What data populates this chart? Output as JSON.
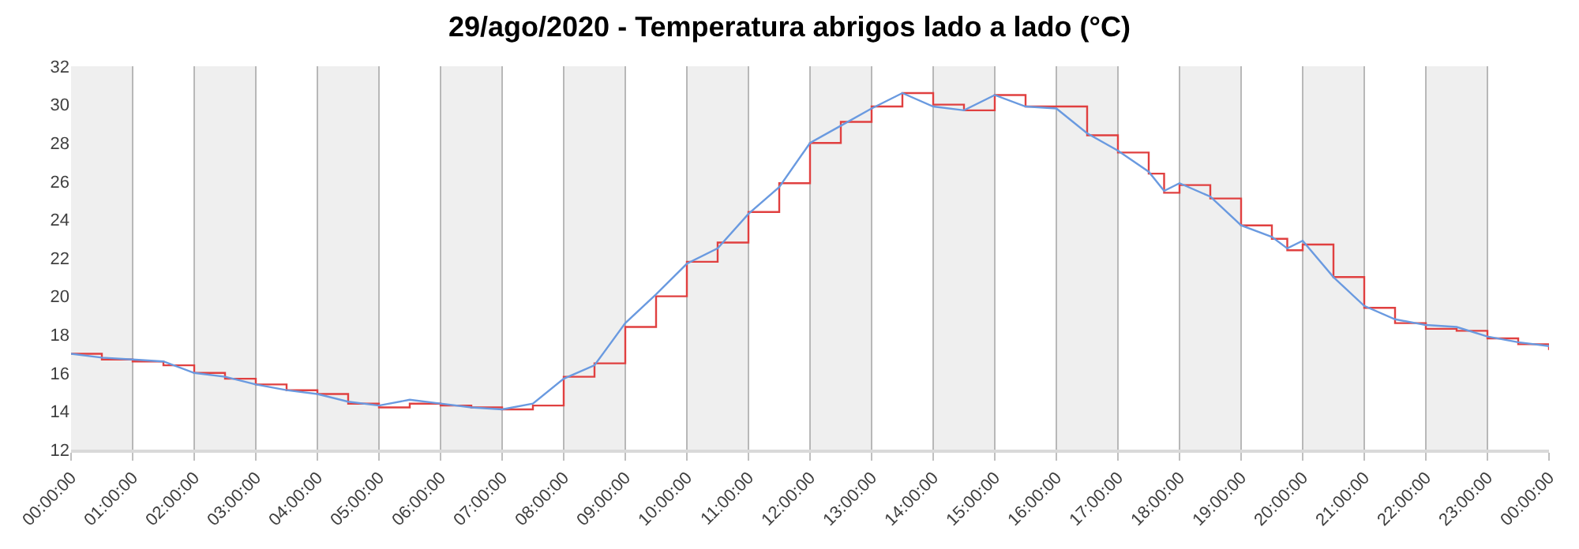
{
  "chart_data": {
    "type": "line",
    "title": "29/ago/2020 - Temperatura abrigos lado a lado (°C)",
    "x": [
      "2020-08-29T00:00",
      "2020-08-29T00:30",
      "2020-08-29T01:00",
      "2020-08-29T01:30",
      "2020-08-29T02:00",
      "2020-08-29T02:30",
      "2020-08-29T03:00",
      "2020-08-29T03:30",
      "2020-08-29T04:00",
      "2020-08-29T04:30",
      "2020-08-29T05:00",
      "2020-08-29T05:30",
      "2020-08-29T06:00",
      "2020-08-29T06:30",
      "2020-08-29T07:00",
      "2020-08-29T07:30",
      "2020-08-29T08:00",
      "2020-08-29T08:30",
      "2020-08-29T09:00",
      "2020-08-29T09:30",
      "2020-08-29T10:00",
      "2020-08-29T10:30",
      "2020-08-29T11:00",
      "2020-08-29T11:30",
      "2020-08-29T12:00",
      "2020-08-29T12:30",
      "2020-08-29T13:00",
      "2020-08-29T13:30",
      "2020-08-29T14:00",
      "2020-08-29T14:30",
      "2020-08-29T15:00",
      "2020-08-29T15:30",
      "2020-08-29T16:00",
      "2020-08-29T16:30",
      "2020-08-29T17:00",
      "2020-08-29T17:30",
      "2020-08-29T17:45",
      "2020-08-29T18:00",
      "2020-08-29T18:30",
      "2020-08-29T19:00",
      "2020-08-29T19:30",
      "2020-08-29T19:45",
      "2020-08-29T20:00",
      "2020-08-29T20:30",
      "2020-08-29T21:00",
      "2020-08-29T21:30",
      "2020-08-29T22:00",
      "2020-08-29T22:30",
      "2020-08-29T23:00",
      "2020-08-29T23:30",
      "2020-08-30T00:00"
    ],
    "series": [
      {
        "type": "step",
        "color": "#e04040",
        "values": [
          17.0,
          16.7,
          16.6,
          16.4,
          16.0,
          15.7,
          15.4,
          15.1,
          14.9,
          14.4,
          14.2,
          14.4,
          14.3,
          14.2,
          14.1,
          14.3,
          15.8,
          16.5,
          18.4,
          20.0,
          21.8,
          22.8,
          24.4,
          25.9,
          28.0,
          29.1,
          29.9,
          30.6,
          30.0,
          29.7,
          30.5,
          29.9,
          29.9,
          28.4,
          27.5,
          26.4,
          25.4,
          25.8,
          25.1,
          23.7,
          23.0,
          22.4,
          22.7,
          21.0,
          19.4,
          18.6,
          18.3,
          18.2,
          17.8,
          17.5,
          17.2
        ]
      },
      {
        "color": "#6a9ae0",
        "values": [
          17.0,
          16.8,
          16.7,
          16.6,
          16.0,
          15.8,
          15.4,
          15.1,
          14.9,
          14.5,
          14.3,
          14.6,
          14.4,
          14.2,
          14.1,
          14.4,
          15.7,
          16.4,
          18.6,
          20.1,
          21.7,
          22.5,
          24.3,
          25.7,
          28.0,
          28.9,
          29.8,
          30.6,
          29.9,
          29.7,
          30.5,
          29.9,
          29.8,
          28.5,
          27.6,
          26.5,
          25.5,
          25.9,
          25.2,
          23.7,
          23.1,
          22.5,
          22.9,
          21.0,
          19.5,
          18.8,
          18.5,
          18.4,
          17.9,
          17.6,
          17.4
        ]
      }
    ],
    "xlim": [
      "2020-08-29T00:00",
      "2020-08-30T00:00"
    ],
    "xticks": [
      {
        "value": "2020-08-29T00:00",
        "label": "00:00:00"
      },
      {
        "value": "2020-08-29T01:00",
        "label": "01:00:00"
      },
      {
        "value": "2020-08-29T02:00",
        "label": "02:00:00"
      },
      {
        "value": "2020-08-29T03:00",
        "label": "03:00:00"
      },
      {
        "value": "2020-08-29T04:00",
        "label": "04:00:00"
      },
      {
        "value": "2020-08-29T05:00",
        "label": "05:00:00"
      },
      {
        "value": "2020-08-29T06:00",
        "label": "06:00:00"
      },
      {
        "value": "2020-08-29T07:00",
        "label": "07:00:00"
      },
      {
        "value": "2020-08-29T08:00",
        "label": "08:00:00"
      },
      {
        "value": "2020-08-29T09:00",
        "label": "09:00:00"
      },
      {
        "value": "2020-08-29T10:00",
        "label": "10:00:00"
      },
      {
        "value": "2020-08-29T11:00",
        "label": "11:00:00"
      },
      {
        "value": "2020-08-29T12:00",
        "label": "12:00:00"
      },
      {
        "value": "2020-08-29T13:00",
        "label": "13:00:00"
      },
      {
        "value": "2020-08-29T14:00",
        "label": "14:00:00"
      },
      {
        "value": "2020-08-29T15:00",
        "label": "15:00:00"
      },
      {
        "value": "2020-08-29T16:00",
        "label": "16:00:00"
      },
      {
        "value": "2020-08-29T17:00",
        "label": "17:00:00"
      },
      {
        "value": "2020-08-29T18:00",
        "label": "18:00:00"
      },
      {
        "value": "2020-08-29T19:00",
        "label": "19:00:00"
      },
      {
        "value": "2020-08-29T20:00",
        "label": "20:00:00"
      },
      {
        "value": "2020-08-29T21:00",
        "label": "21:00:00"
      },
      {
        "value": "2020-08-29T22:00",
        "label": "22:00:00"
      },
      {
        "value": "2020-08-29T23:00",
        "label": "23:00:00"
      },
      {
        "value": "2020-08-30T00:00",
        "label": "00:00:00"
      }
    ],
    "ylim": [
      12,
      32
    ],
    "yticks": [
      12,
      14,
      16,
      18,
      20,
      22,
      24,
      26,
      28,
      30,
      32
    ],
    "grid": "x",
    "bands": [
      {
        "axis": "x",
        "from": "2020-08-29T00:00",
        "to": "2020-08-29T01:00",
        "color": "#efefef"
      },
      {
        "axis": "x",
        "from": "2020-08-29T02:00",
        "to": "2020-08-29T03:00",
        "color": "#efefef"
      },
      {
        "axis": "x",
        "from": "2020-08-29T04:00",
        "to": "2020-08-29T05:00",
        "color": "#efefef"
      },
      {
        "axis": "x",
        "from": "2020-08-29T06:00",
        "to": "2020-08-29T07:00",
        "color": "#efefef"
      },
      {
        "axis": "x",
        "from": "2020-08-29T08:00",
        "to": "2020-08-29T09:00",
        "color": "#efefef"
      },
      {
        "axis": "x",
        "from": "2020-08-29T10:00",
        "to": "2020-08-29T11:00",
        "color": "#efefef"
      },
      {
        "axis": "x",
        "from": "2020-08-29T12:00",
        "to": "2020-08-29T13:00",
        "color": "#efefef"
      },
      {
        "axis": "x",
        "from": "2020-08-29T14:00",
        "to": "2020-08-29T15:00",
        "color": "#efefef"
      },
      {
        "axis": "x",
        "from": "2020-08-29T16:00",
        "to": "2020-08-29T17:00",
        "color": "#efefef"
      },
      {
        "axis": "x",
        "from": "2020-08-29T18:00",
        "to": "2020-08-29T19:00",
        "color": "#efefef"
      },
      {
        "axis": "x",
        "from": "2020-08-29T20:00",
        "to": "2020-08-29T21:00",
        "color": "#efefef"
      },
      {
        "axis": "x",
        "from": "2020-08-29T22:00",
        "to": "2020-08-29T23:00",
        "color": "#efefef"
      }
    ]
  }
}
